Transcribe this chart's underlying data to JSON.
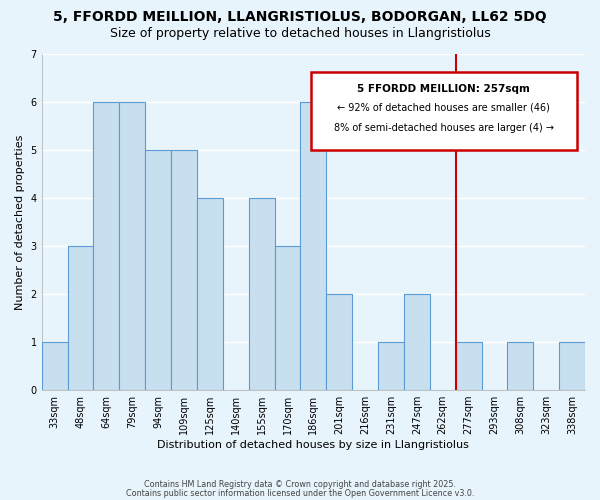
{
  "title": "5, FFORDD MEILLION, LLANGRISTIOLUS, BODORGAN, LL62 5DQ",
  "subtitle": "Size of property relative to detached houses in Llangristiolus",
  "xlabel": "Distribution of detached houses by size in Llangristiolus",
  "ylabel": "Number of detached properties",
  "bar_labels": [
    "33sqm",
    "48sqm",
    "64sqm",
    "79sqm",
    "94sqm",
    "109sqm",
    "125sqm",
    "140sqm",
    "155sqm",
    "170sqm",
    "186sqm",
    "201sqm",
    "216sqm",
    "231sqm",
    "247sqm",
    "262sqm",
    "277sqm",
    "293sqm",
    "308sqm",
    "323sqm",
    "338sqm"
  ],
  "bar_values": [
    1,
    3,
    6,
    6,
    5,
    5,
    4,
    0,
    4,
    3,
    6,
    2,
    0,
    1,
    2,
    0,
    1,
    0,
    1,
    0,
    1
  ],
  "bar_color": "#c8dff0",
  "bar_edge_color": "#5b9bd5",
  "ylim": [
    0,
    7
  ],
  "yticks": [
    0,
    1,
    2,
    3,
    4,
    5,
    6,
    7
  ],
  "vline_x": 15.5,
  "vline_color": "#cc0000",
  "annotation_title": "5 FFORDD MEILLION: 257sqm",
  "annotation_line1": "← 92% of detached houses are smaller (46)",
  "annotation_line2": "8% of semi-detached houses are larger (4) →",
  "footer1": "Contains HM Land Registry data © Crown copyright and database right 2025.",
  "footer2": "Contains public sector information licensed under the Open Government Licence v3.0.",
  "background_color": "#e8f4fb",
  "grid_color": "#ffffff",
  "title_fontsize": 10,
  "subtitle_fontsize": 9,
  "axis_fontsize": 8,
  "tick_fontsize": 7
}
